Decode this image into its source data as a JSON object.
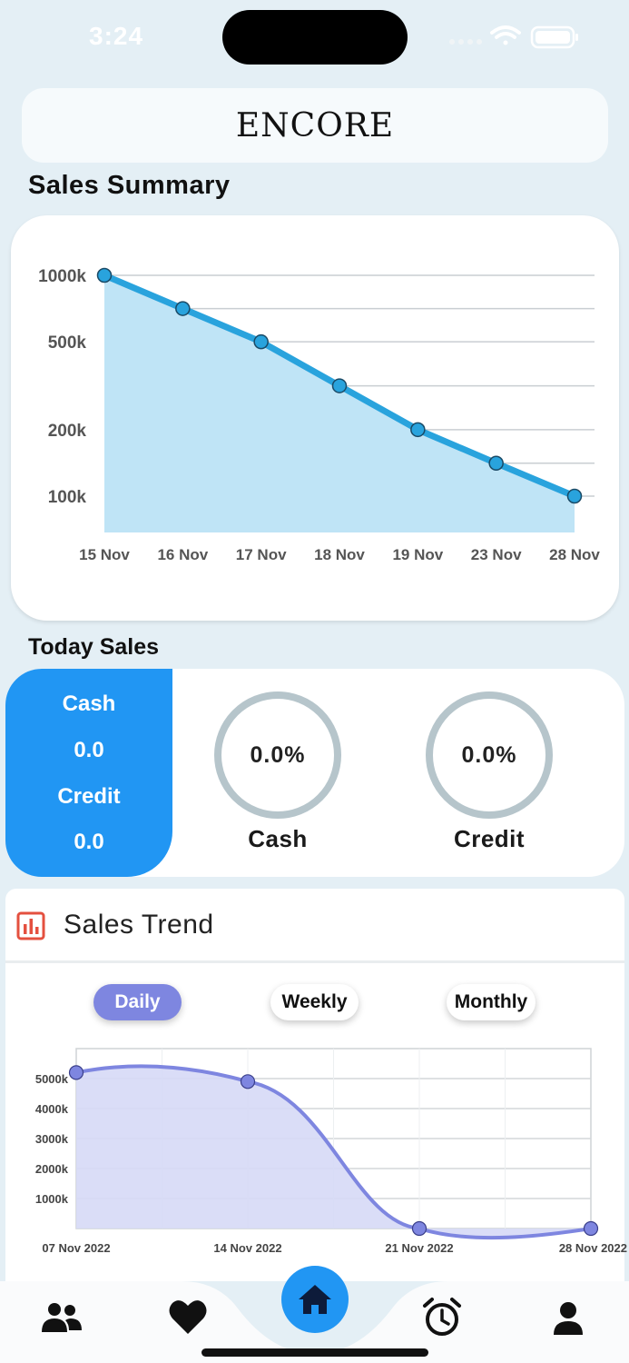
{
  "status_bar": {
    "time": "3:24"
  },
  "brand": {
    "title": "ENCORE"
  },
  "sales_summary": {
    "title": "Sales Summary",
    "chart_data": {
      "type": "area",
      "title": "",
      "categories": [
        "15 Nov",
        "16 Nov",
        "17 Nov",
        "18 Nov",
        "19 Nov",
        "23 Nov",
        "28 Nov"
      ],
      "y_ticks": [
        "1000k",
        "500k",
        "200k",
        "100k"
      ],
      "y_tick_values": [
        1000000,
        500000,
        200000,
        100000
      ],
      "scale": "log",
      "values": [
        1000000,
        707000,
        500000,
        316000,
        200000,
        141000,
        100000
      ],
      "grid": true,
      "color": "#29a3dd",
      "fill": "#bfe4f6"
    }
  },
  "today_sales": {
    "title": "Today Sales",
    "cash_label": "Cash",
    "cash_value": "0.0",
    "credit_label": "Credit",
    "credit_value": "0.0",
    "cash_percent": "0.0%",
    "credit_percent": "0.0%",
    "cash_ring_label": "Cash",
    "credit_ring_label": "Credit"
  },
  "sales_trend": {
    "title": "Sales Trend",
    "tabs": [
      "Daily",
      "Weekly",
      "Monthly"
    ],
    "active_tab": "Daily",
    "chart_data": {
      "type": "area",
      "title": "",
      "categories": [
        "07 Nov 2022",
        "14 Nov 2022",
        "21 Nov 2022",
        "28 Nov 2022"
      ],
      "y_ticks": [
        "5000k",
        "4000k",
        "3000k",
        "2000k",
        "1000k"
      ],
      "y_tick_values": [
        5000000,
        4000000,
        3000000,
        2000000,
        1000000
      ],
      "ylim": [
        0,
        6000000
      ],
      "values": [
        5200000,
        4900000,
        0,
        0
      ],
      "grid": true,
      "color": "#7e86e0",
      "fill": "#d6d9f6"
    }
  },
  "nav": {
    "items": [
      "people-icon",
      "heart-icon",
      "home-icon",
      "alarm-clock-icon",
      "person-icon"
    ],
    "active": "home-icon",
    "accent": "#2196f3"
  }
}
